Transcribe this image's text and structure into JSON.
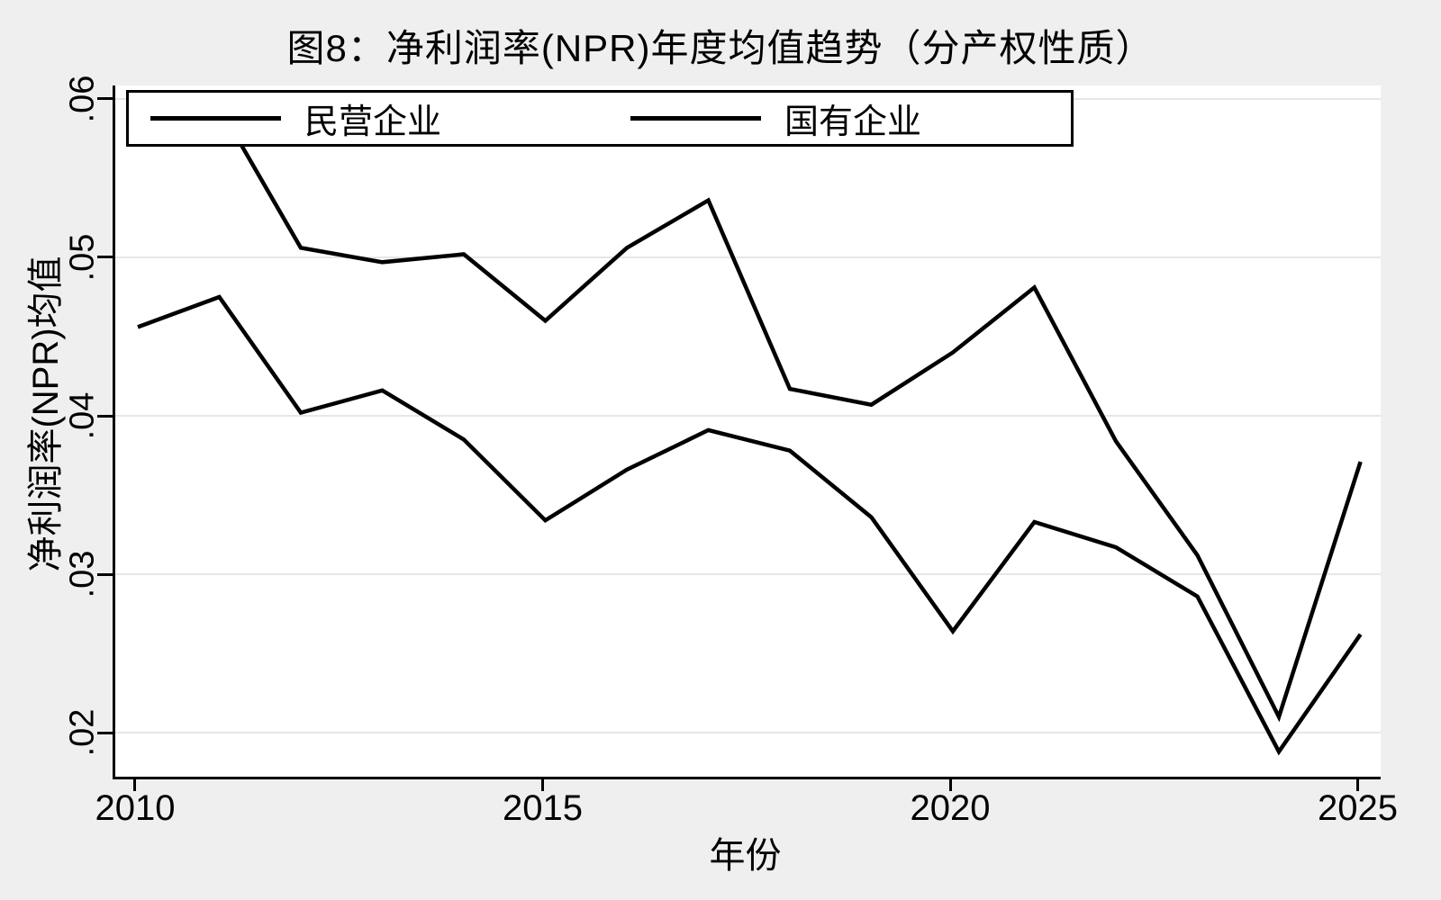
{
  "title": "图8：净利润率(NPR)年度均值趋势（分产权性质）",
  "axes": {
    "x_label": "年份",
    "y_label": "净利润率(NPR)均值",
    "x_tick_labels": [
      "2010",
      "2015",
      "2020",
      "2025"
    ],
    "y_tick_labels": [
      ".02",
      ".03",
      ".04",
      ".05",
      ".06"
    ]
  },
  "legend": {
    "items": [
      {
        "label": "民营企业"
      },
      {
        "label": "国有企业"
      }
    ]
  },
  "colors": {
    "line": "#000000",
    "grid": "#e6e6e6",
    "plot_background": "#ffffff",
    "page_background": "#efefef"
  },
  "chart_data": {
    "type": "line",
    "title": "图8：净利润率(NPR)年度均值趋势（分产权性质）",
    "xlabel": "年份",
    "ylabel": "净利润率(NPR)均值",
    "x": [
      2010,
      2011,
      2012,
      2013,
      2014,
      2015,
      2016,
      2017,
      2018,
      2019,
      2020,
      2021,
      2022,
      2023,
      2024,
      2025
    ],
    "series": [
      {
        "name": "民营企业",
        "values": [
          0.058,
          0.0595,
          0.0506,
          0.0497,
          0.0502,
          0.046,
          0.0506,
          0.0536,
          0.0417,
          0.0407,
          0.044,
          0.0481,
          0.0384,
          0.0312,
          0.021,
          0.0371
        ]
      },
      {
        "name": "国有企业",
        "values": [
          0.0456,
          0.0475,
          0.0402,
          0.0416,
          0.0385,
          0.0334,
          0.0366,
          0.0391,
          0.0378,
          0.0336,
          0.0264,
          0.0333,
          0.0317,
          0.0286,
          0.0188,
          0.0262
        ]
      }
    ],
    "x_ticks": [
      2010,
      2015,
      2020,
      2025
    ],
    "y_ticks": [
      0.02,
      0.03,
      0.04,
      0.05,
      0.06
    ],
    "xlim": [
      2009.724,
      2025.248
    ],
    "ylim": [
      0.01722,
      0.06085
    ],
    "grid": true,
    "legend_position": "top-inside",
    "line_style": "solid"
  }
}
